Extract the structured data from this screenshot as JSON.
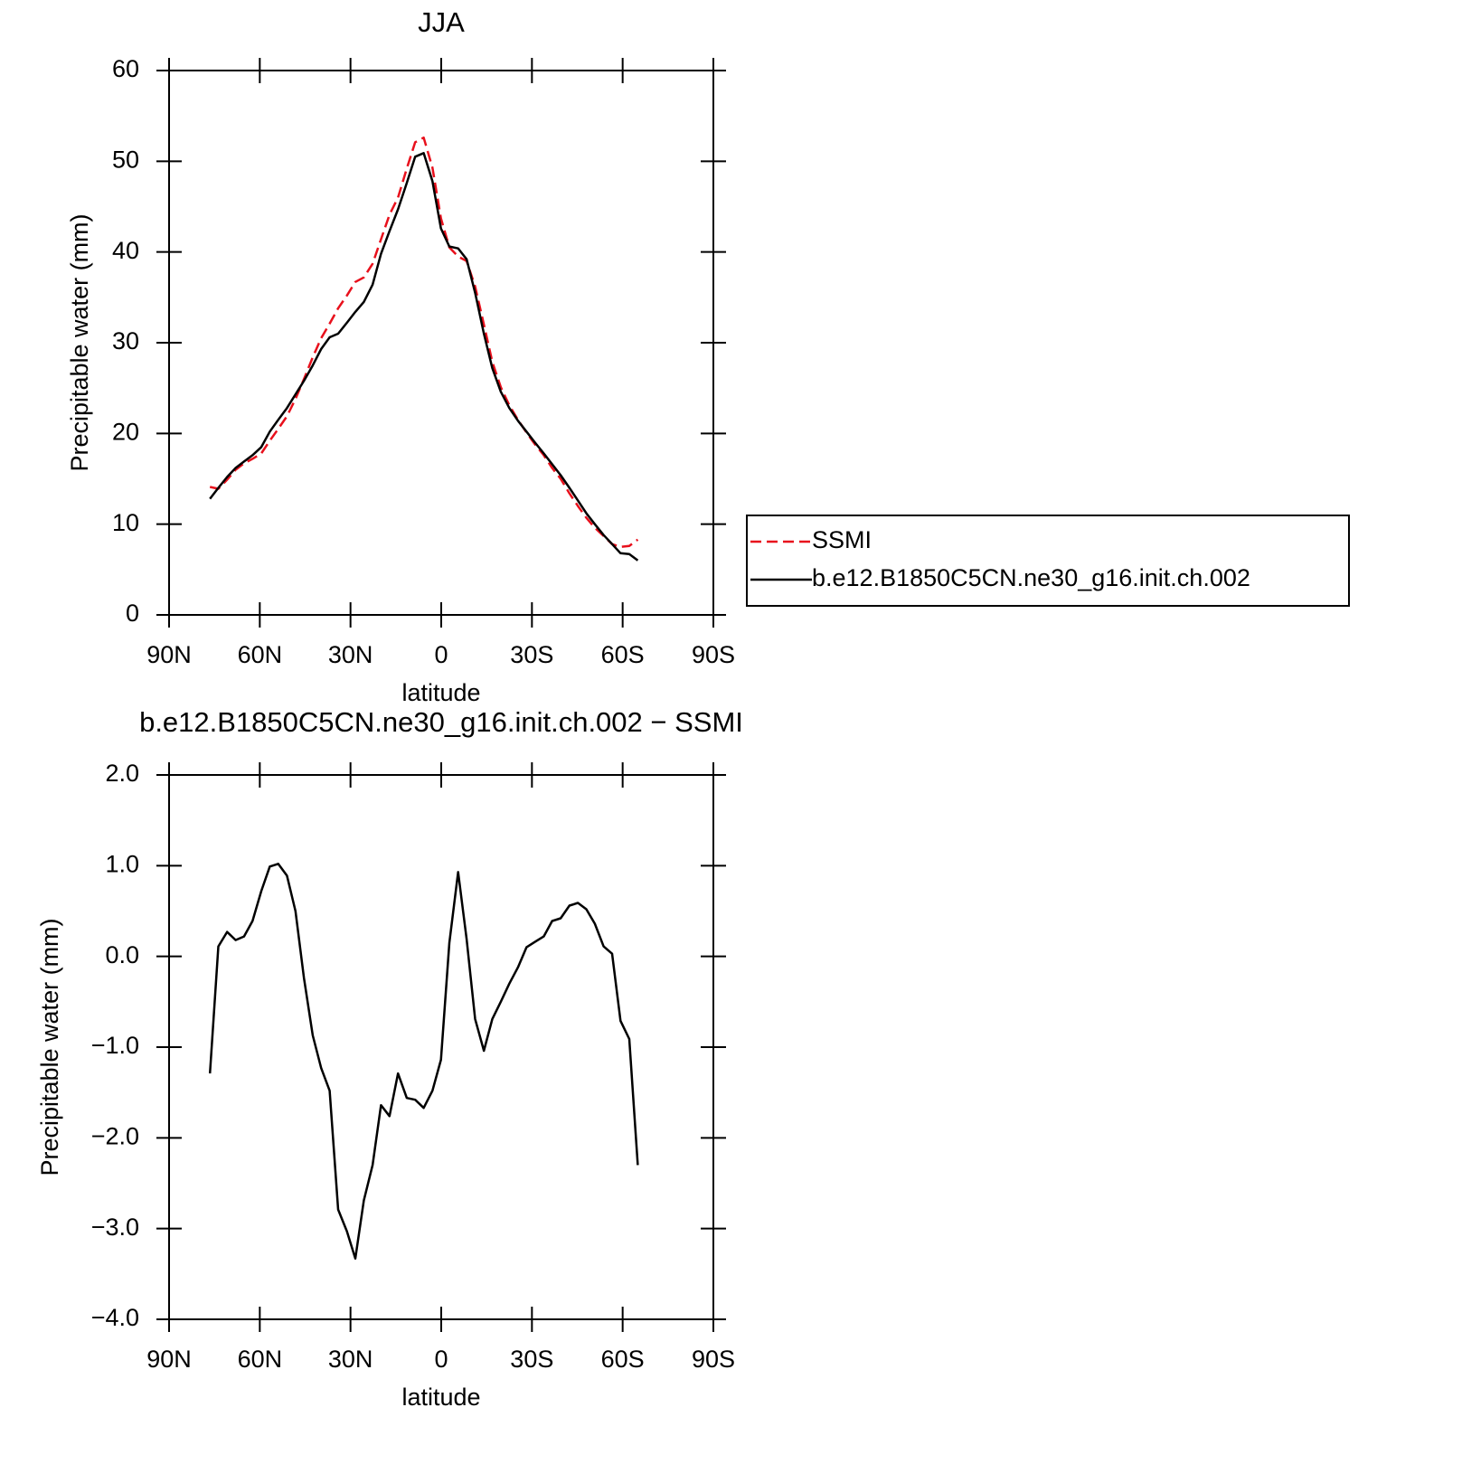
{
  "chart_data": [
    {
      "type": "line",
      "title": "JJA",
      "xlabel": "latitude",
      "ylabel": "Precipitable water (mm)",
      "x": [
        76.5,
        73.7,
        70.8,
        68.0,
        65.2,
        62.4,
        59.5,
        56.7,
        53.9,
        51.0,
        48.2,
        45.4,
        42.5,
        39.7,
        36.9,
        34.1,
        31.2,
        28.4,
        25.6,
        22.7,
        19.9,
        17.1,
        14.3,
        11.4,
        8.6,
        5.8,
        2.9,
        0.1,
        -2.7,
        -5.6,
        -8.4,
        -11.2,
        -14.1,
        -16.9,
        -19.7,
        -22.5,
        -25.4,
        -28.2,
        -31.0,
        -33.9,
        -36.7,
        -39.5,
        -42.4,
        -45.2,
        -48.0,
        -50.8,
        -53.7,
        -56.5,
        -59.3,
        -62.2,
        -65.0
      ],
      "series": [
        {
          "name": "SSMI",
          "color": "#e8101c",
          "style": "dashed",
          "values": [
            14.1,
            13.9,
            14.9,
            16.0,
            16.7,
            17.2,
            17.8,
            19.2,
            20.5,
            21.9,
            23.8,
            26.0,
            28.4,
            30.5,
            32.1,
            33.8,
            35.2,
            36.7,
            37.2,
            38.7,
            41.4,
            44.1,
            46.0,
            49.2,
            52.1,
            52.6,
            49.3,
            43.7,
            40.5,
            39.5,
            39.0,
            36.2,
            32.0,
            27.9,
            25.1,
            23.1,
            21.5,
            20.1,
            18.8,
            17.6,
            16.2,
            15.0,
            13.4,
            12.0,
            10.7,
            9.6,
            8.7,
            7.8,
            7.5,
            7.6,
            8.3
          ]
        },
        {
          "name": "b.e12.B1850C5CN.ne30_g16.init.ch.002",
          "color": "#000000",
          "style": "solid",
          "values": [
            12.8,
            14.0,
            15.2,
            16.2,
            16.9,
            17.6,
            18.5,
            20.2,
            21.5,
            22.8,
            24.3,
            25.8,
            27.5,
            29.3,
            30.6,
            31.0,
            32.2,
            33.4,
            34.5,
            36.4,
            39.8,
            42.3,
            44.7,
            47.6,
            50.5,
            50.9,
            47.8,
            42.6,
            40.6,
            40.4,
            39.2,
            35.5,
            31.0,
            27.2,
            24.6,
            22.8,
            21.4,
            20.2,
            19.0,
            17.8,
            16.6,
            15.4,
            14.0,
            12.6,
            11.2,
            10.0,
            8.8,
            7.8,
            6.8,
            6.7,
            6.0
          ]
        }
      ],
      "xlim": [
        90,
        -90
      ],
      "xticks": [
        {
          "value": 90,
          "label": "90N"
        },
        {
          "value": 60,
          "label": "60N"
        },
        {
          "value": 30,
          "label": "30N"
        },
        0,
        {
          "value": -30,
          "label": "30S"
        },
        {
          "value": -60,
          "label": "60S"
        },
        {
          "value": -90,
          "label": "90S"
        }
      ],
      "ylim": [
        0,
        60
      ],
      "yticks": [
        0,
        10,
        20,
        30,
        40,
        50,
        60
      ],
      "legend": "right"
    },
    {
      "type": "line",
      "title": "b.e12.B1850C5CN.ne30_g16.init.ch.002 − SSMI",
      "xlabel": "latitude",
      "ylabel": "Precipitable water (mm)",
      "x": [
        76.5,
        73.7,
        70.8,
        68.0,
        65.2,
        62.4,
        59.5,
        56.7,
        53.9,
        51.0,
        48.2,
        45.4,
        42.5,
        39.7,
        36.9,
        34.1,
        31.2,
        28.4,
        25.6,
        22.7,
        19.9,
        17.1,
        14.3,
        11.4,
        8.6,
        5.8,
        2.9,
        0.1,
        -2.7,
        -5.6,
        -8.4,
        -11.2,
        -14.1,
        -16.9,
        -19.7,
        -22.5,
        -25.4,
        -28.2,
        -31.0,
        -33.9,
        -36.7,
        -39.5,
        -42.4,
        -45.2,
        -48.0,
        -50.8,
        -53.7,
        -56.5,
        -59.3,
        -62.2,
        -65.0
      ],
      "values": [
        -1.29,
        0.11,
        0.27,
        0.18,
        0.22,
        0.39,
        0.72,
        0.99,
        1.02,
        0.89,
        0.5,
        -0.24,
        -0.87,
        -1.23,
        -1.48,
        -2.79,
        -3.03,
        -3.33,
        -2.69,
        -2.3,
        -1.64,
        -1.76,
        -1.29,
        -1.56,
        -1.58,
        -1.67,
        -1.48,
        -1.14,
        0.15,
        0.93,
        0.19,
        -0.69,
        -1.04,
        -0.69,
        -0.5,
        -0.3,
        -0.12,
        0.1,
        0.16,
        0.22,
        0.39,
        0.42,
        0.56,
        0.59,
        0.52,
        0.36,
        0.11,
        0.03,
        -0.71,
        -0.91,
        -2.3
      ],
      "color": "#000000",
      "xlim": [
        90,
        -90
      ],
      "xticks": [
        {
          "value": 90,
          "label": "90N"
        },
        {
          "value": 60,
          "label": "60N"
        },
        {
          "value": 30,
          "label": "30N"
        },
        0,
        {
          "value": -30,
          "label": "30S"
        },
        {
          "value": -60,
          "label": "60S"
        },
        {
          "value": -90,
          "label": "90S"
        }
      ],
      "ylim": [
        -4,
        2
      ],
      "yticks": [
        {
          "value": -4,
          "label": "−4.0"
        },
        {
          "value": -3,
          "label": "−3.0"
        },
        {
          "value": -2,
          "label": "−2.0"
        },
        {
          "value": -1,
          "label": "−1.0"
        },
        {
          "value": 0,
          "label": "0.0"
        },
        {
          "value": 1,
          "label": "1.0"
        },
        {
          "value": 2,
          "label": "2.0"
        }
      ]
    }
  ]
}
